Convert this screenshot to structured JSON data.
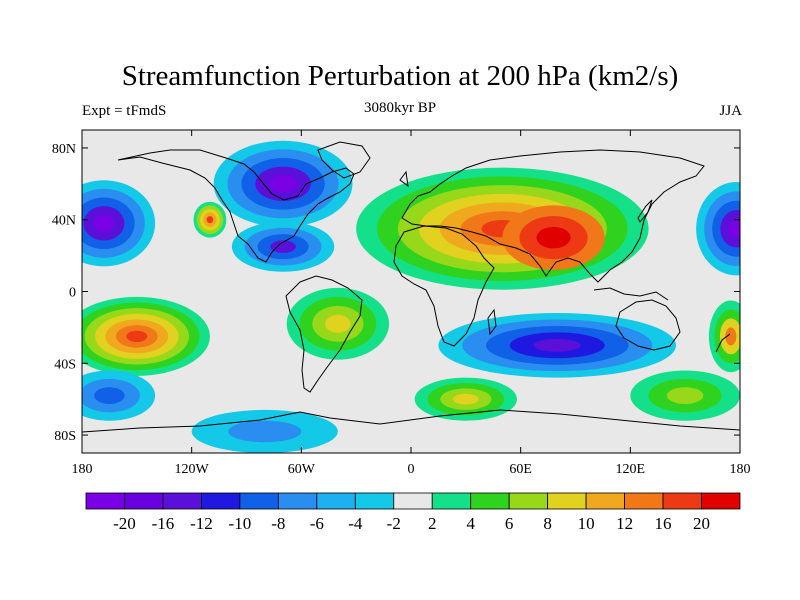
{
  "title": "Streamfunction Perturbation at 200 hPa (km2/s)",
  "subtitle_left": "Expt = tFmdS",
  "subtitle_center": "3080kyr BP",
  "subtitle_right": "JJA",
  "map": {
    "projection": "cylindrical-equidistant",
    "lon_range": [
      -180,
      180
    ],
    "lat_range": [
      -90,
      90
    ],
    "x_ticks": [
      {
        "lon": -180,
        "label": "180"
      },
      {
        "lon": -120,
        "label": "120W"
      },
      {
        "lon": -60,
        "label": "60W"
      },
      {
        "lon": 0,
        "label": "0"
      },
      {
        "lon": 60,
        "label": "60E"
      },
      {
        "lon": 120,
        "label": "120E"
      },
      {
        "lon": 180,
        "label": "180"
      }
    ],
    "y_ticks": [
      {
        "lat": 80,
        "label": "80N"
      },
      {
        "lat": 40,
        "label": "40N"
      },
      {
        "lat": 0,
        "label": "0"
      },
      {
        "lat": -40,
        "label": "40S"
      },
      {
        "lat": -80,
        "label": "80S"
      }
    ],
    "background_color": "#e8e8e8"
  },
  "colorbar": {
    "labels": [
      "-20",
      "-16",
      "-12",
      "-10",
      "-8",
      "-6",
      "-4",
      "-2",
      "2",
      "4",
      "6",
      "8",
      "10",
      "12",
      "16",
      "20"
    ],
    "colors": [
      "#7a00e6",
      "#6a00e0",
      "#5a10d8",
      "#1e18e0",
      "#1060e8",
      "#2a8ef0",
      "#1eb0f0",
      "#14c8e8",
      "#e8e8e8",
      "#14e08a",
      "#2fd21e",
      "#98d81a",
      "#e0d21e",
      "#f0a81e",
      "#f07818",
      "#ee3a14",
      "#e00000"
    ]
  },
  "fields": [
    {
      "name": "north-pacific-low",
      "lon": -168,
      "lat": 38,
      "rlon": 28,
      "rlat": 24,
      "levels": [
        "#14c8e8",
        "#2a8ef0",
        "#1060e8",
        "#5a10d8",
        "#7a00e6"
      ]
    },
    {
      "name": "north-pacific-low-east",
      "lon": 178,
      "lat": 35,
      "rlon": 22,
      "rlat": 26,
      "levels": [
        "#14c8e8",
        "#2a8ef0",
        "#1060e8",
        "#5a10d8",
        "#7a00e6"
      ]
    },
    {
      "name": "hudson-low",
      "lon": -70,
      "lat": 60,
      "rlon": 38,
      "rlat": 24,
      "levels": [
        "#14c8e8",
        "#2a8ef0",
        "#1060e8",
        "#5a10d8",
        "#7a00e6"
      ]
    },
    {
      "name": "caribbean-low",
      "lon": -70,
      "lat": 25,
      "rlon": 28,
      "rlat": 14,
      "levels": [
        "#14c8e8",
        "#2a8ef0",
        "#1060e8",
        "#5a10d8"
      ]
    },
    {
      "name": "western-us-high",
      "lon": -110,
      "lat": 40,
      "rlon": 9,
      "rlat": 10,
      "levels": [
        "#14e08a",
        "#98d81a",
        "#e0d21e",
        "#f0a81e",
        "#ee3a14"
      ]
    },
    {
      "name": "asian-high",
      "lon": 50,
      "lat": 35,
      "rlon": 80,
      "rlat": 34,
      "levels": [
        "#14e08a",
        "#2fd21e",
        "#98d81a",
        "#e0d21e",
        "#f0a81e",
        "#f07818",
        "#ee3a14"
      ]
    },
    {
      "name": "tibetan-core",
      "lon": 78,
      "lat": 30,
      "rlon": 28,
      "rlat": 18,
      "levels": [
        "#f07818",
        "#ee3a14",
        "#e00000"
      ]
    },
    {
      "name": "pacific-south-high",
      "lon": -150,
      "lat": -25,
      "rlon": 40,
      "rlat": 22,
      "levels": [
        "#14e08a",
        "#2fd21e",
        "#98d81a",
        "#e0d21e",
        "#f0a81e",
        "#f07818",
        "#ee3a14"
      ]
    },
    {
      "name": "south-america-high",
      "lon": -40,
      "lat": -18,
      "rlon": 28,
      "rlat": 20,
      "levels": [
        "#14e08a",
        "#2fd21e",
        "#98d81a",
        "#e0d21e"
      ]
    },
    {
      "name": "indian-ocean-low",
      "lon": 80,
      "lat": -30,
      "rlon": 65,
      "rlat": 18,
      "levels": [
        "#14c8e8",
        "#2a8ef0",
        "#1060e8",
        "#1e18e0",
        "#5a10d8"
      ]
    },
    {
      "name": "south-atlantic-high",
      "lon": 30,
      "lat": -60,
      "rlon": 28,
      "rlat": 12,
      "levels": [
        "#14e08a",
        "#2fd21e",
        "#98d81a",
        "#e0d21e"
      ]
    },
    {
      "name": "southern-ocean-high",
      "lon": 150,
      "lat": -58,
      "rlon": 30,
      "rlat": 14,
      "levels": [
        "#14e08a",
        "#2fd21e",
        "#98d81a"
      ]
    },
    {
      "name": "south-pacific-low",
      "lon": -165,
      "lat": -58,
      "rlon": 25,
      "rlat": 14,
      "levels": [
        "#14c8e8",
        "#2a8ef0",
        "#1060e8"
      ]
    },
    {
      "name": "antarctic-low",
      "lon": -80,
      "lat": -78,
      "rlon": 40,
      "rlat": 12,
      "levels": [
        "#14c8e8",
        "#2a8ef0"
      ]
    },
    {
      "name": "australia-high",
      "lon": 175,
      "lat": -25,
      "rlon": 12,
      "rlat": 20,
      "levels": [
        "#14e08a",
        "#2fd21e",
        "#e0d21e",
        "#f07818"
      ]
    }
  ]
}
